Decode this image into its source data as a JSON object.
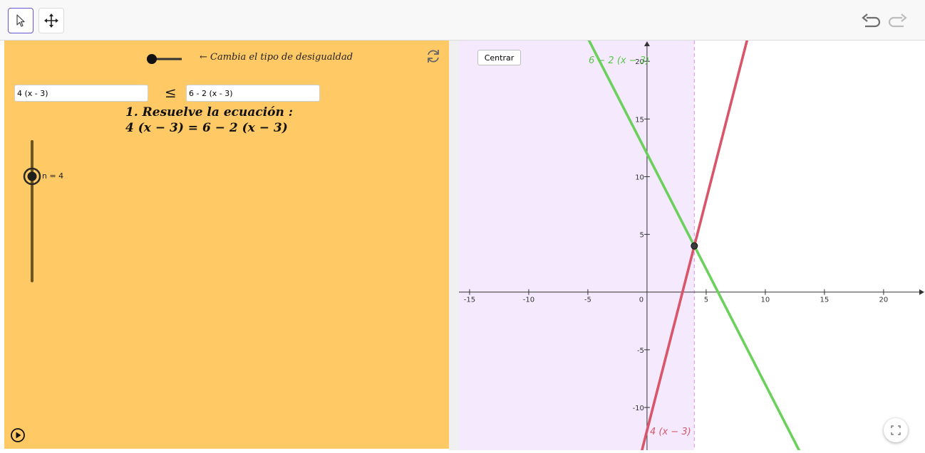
{
  "toolbar": {
    "select_icon": "arrow-pointer-icon",
    "move_icon": "move-arrows-icon",
    "undo_icon": "undo-icon",
    "redo_icon": "redo-icon"
  },
  "algebra": {
    "toggle_caption": "← Cambia el tipo de desigualdad",
    "left_expr": "4 (x - 3)",
    "relation_symbol": "≤",
    "right_expr": "6 - 2 (x - 3)",
    "step_title": "1. Resuelve la ecuación :",
    "step_equation": "4 (x − 3) = 6 − 2 (x − 3)",
    "slider_label": "n = 4",
    "reset_icon": "reset-icon",
    "play_icon": "play-icon"
  },
  "graph": {
    "center_button": "Centrar",
    "fullscreen_icon": "fullscreen-icon",
    "line_green_label": "6 − 2 (x − 3)",
    "line_red_label": "4 (x − 3)",
    "colors": {
      "green": "#6cd05c",
      "red": "#d9566a",
      "shade": "#f4e9fd",
      "dashed": "#dda0ee"
    }
  },
  "chart_data": {
    "type": "line",
    "xlim": [
      -15.9,
      23.5
    ],
    "ylim": [
      -13.7,
      21.8
    ],
    "x_ticks": [
      -15,
      -10,
      -5,
      0,
      5,
      10,
      15,
      20
    ],
    "y_ticks": [
      -10,
      -5,
      5,
      10,
      15,
      20
    ],
    "x_tick_labels": [
      "-15",
      "-10",
      "-5",
      "0",
      "5",
      "10",
      "15",
      "20"
    ],
    "y_tick_labels": [
      "-10",
      "-5",
      "5",
      "10",
      "15",
      "20"
    ],
    "series": [
      {
        "name": "6 − 2 (x − 3)",
        "slope": -2,
        "intercept": 12,
        "color": "#6cd05c"
      },
      {
        "name": "4 (x − 3)",
        "slope": 4,
        "intercept": -12,
        "color": "#d9566a"
      }
    ],
    "intersection": {
      "x": 4,
      "y": 4
    },
    "shaded_region": {
      "x_from": -15.9,
      "x_to": 4
    },
    "grid": false
  }
}
